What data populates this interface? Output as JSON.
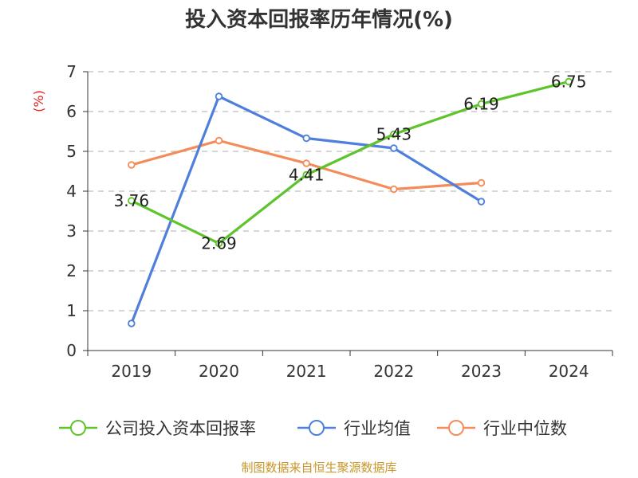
{
  "chart_data": {
    "type": "line",
    "title": "投入资本回报率历年情况(%)",
    "ylabel": "(%)",
    "xlabel": "",
    "categories": [
      "2019",
      "2020",
      "2021",
      "2022",
      "2023",
      "2024"
    ],
    "ylim": [
      0,
      7
    ],
    "yticks": [
      0,
      1,
      2,
      3,
      4,
      5,
      6,
      7
    ],
    "grid": true,
    "legend_position": "bottom",
    "series": [
      {
        "name": "公司投入资本回报率",
        "color": "#5ec42b",
        "values": [
          3.76,
          2.69,
          4.41,
          5.43,
          6.19,
          6.75
        ],
        "labels": [
          "3.76",
          "2.69",
          "4.41",
          "5.43",
          "6.19",
          "6.75"
        ]
      },
      {
        "name": "行业均值",
        "color": "#4f7fdc",
        "values": [
          0.68,
          6.38,
          5.33,
          5.08,
          3.74,
          null
        ]
      },
      {
        "name": "行业中位数",
        "color": "#f48c5a",
        "values": [
          4.66,
          5.27,
          4.7,
          4.05,
          4.21,
          null
        ]
      }
    ]
  },
  "source": "制图数据来自恒生聚源数据库"
}
